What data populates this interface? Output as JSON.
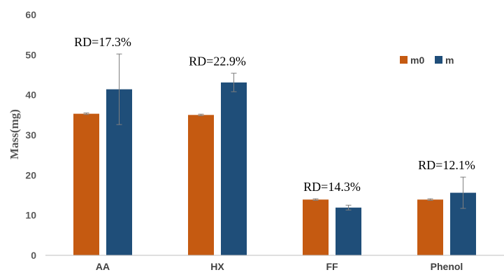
{
  "chart_data": {
    "type": "bar",
    "categories": [
      "AA",
      "HX",
      "FF",
      "Phenol"
    ],
    "series": [
      {
        "name": "m0",
        "color": "#C55A11",
        "values": [
          35.3,
          35.0,
          13.9,
          13.9
        ],
        "errors": [
          0.2,
          0.2,
          0.2,
          0.2
        ]
      },
      {
        "name": "m",
        "color": "#1F4E79",
        "values": [
          41.4,
          43.1,
          11.9,
          15.6
        ],
        "errors": [
          8.8,
          2.3,
          0.6,
          3.9
        ]
      }
    ],
    "annotations": [
      "RD=17.3%",
      "RD=22.9%",
      "RD=14.3%",
      "RD=12.1%"
    ],
    "ylabel": "Mass(mg)",
    "xlabel": "",
    "ylim": [
      0,
      60
    ],
    "yticks": [
      0,
      10,
      20,
      30,
      40,
      50,
      60
    ],
    "grid": false,
    "legend_position": "top-right",
    "error_bar_color": "#7F7F7F",
    "axis_color": "#BFBFBF"
  }
}
